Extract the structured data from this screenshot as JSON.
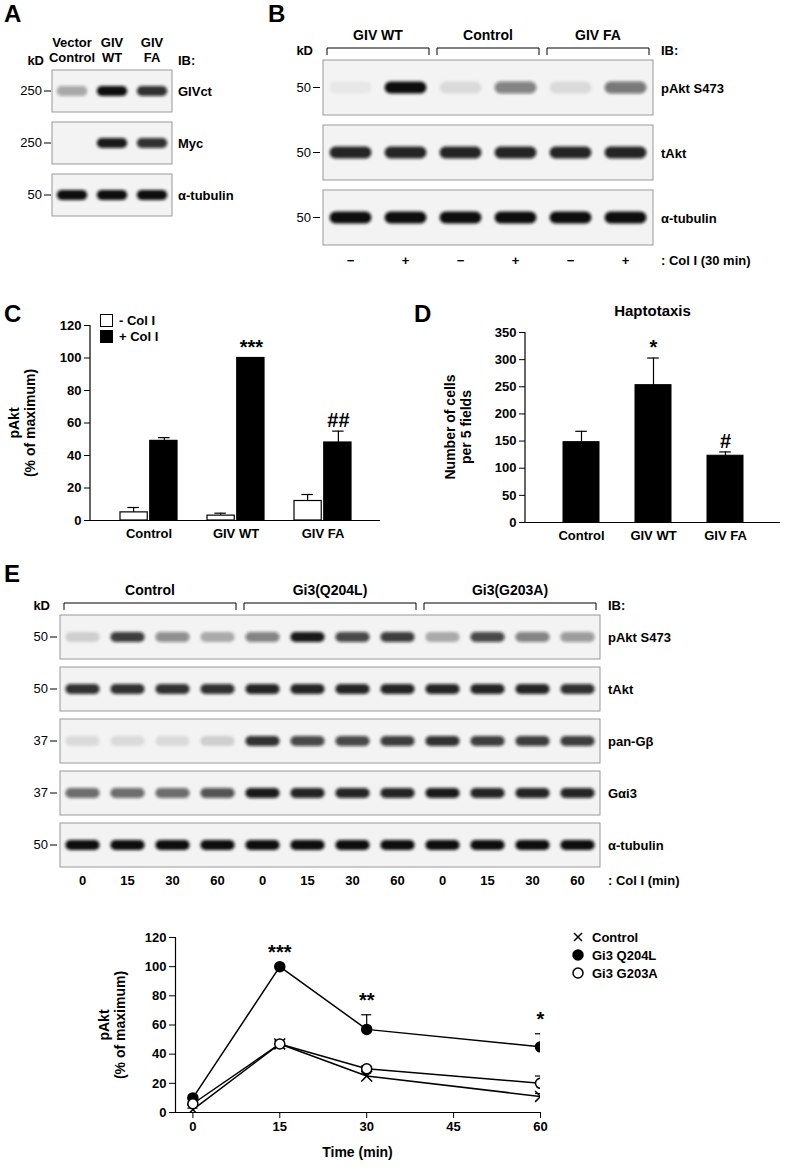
{
  "panel_labels": [
    "A",
    "B",
    "C",
    "D",
    "E"
  ],
  "blots": [
    {
      "lane_labels": [
        "Vector\nControl",
        "GIV\nWT",
        "GIV\nFA"
      ],
      "kd_header": "kD",
      "ib_header": "IB:",
      "rows": [
        {
          "label": "GIVct",
          "kd": 250,
          "intensity": [
            0.35,
            1,
            0.85
          ]
        },
        {
          "label": "Myc",
          "kd": 250,
          "intensity": [
            0,
            0.95,
            0.85
          ]
        },
        {
          "label": "α-tubulin",
          "kd": 50,
          "intensity": [
            1,
            1,
            1
          ]
        }
      ]
    },
    {
      "groups": [
        "GIV WT",
        "Control",
        "GIV FA"
      ],
      "lane_labels_bottom": [
        "−",
        "+",
        "−",
        "+",
        "−",
        "+"
      ],
      "bottom_caption": ": Col I (30 min)",
      "kd_header": "kD",
      "ib_header": "IB:",
      "rows": [
        {
          "label": "pAkt S473",
          "kd": 50,
          "intensity": [
            0.05,
            1,
            0.1,
            0.5,
            0.1,
            0.55
          ]
        },
        {
          "label": "tAkt",
          "kd": 50,
          "intensity": [
            0.9,
            0.9,
            0.9,
            0.9,
            0.9,
            0.9
          ]
        },
        {
          "label": "α-tubulin",
          "kd": 50,
          "intensity": [
            1,
            1,
            1,
            1,
            1,
            1
          ]
        }
      ]
    },
    {
      "groups": [
        "Control",
        "Gi3(Q204L)",
        "Gi3(G203A)"
      ],
      "lane_labels_bottom": [
        0,
        15,
        30,
        60,
        0,
        15,
        30,
        60,
        0,
        15,
        30,
        60
      ],
      "bottom_caption": ": Col I (min)",
      "kd_header": "kD",
      "ib_header": "IB:",
      "rows": [
        {
          "label": "pAkt S473",
          "kd": 50,
          "intensity": [
            0.15,
            0.8,
            0.45,
            0.3,
            0.5,
            0.95,
            0.75,
            0.8,
            0.3,
            0.75,
            0.5,
            0.4
          ]
        },
        {
          "label": "tAkt",
          "kd": 50,
          "intensity": [
            0.85,
            0.85,
            0.85,
            0.85,
            0.9,
            0.9,
            0.9,
            0.9,
            0.9,
            0.9,
            0.9,
            0.85
          ]
        },
        {
          "label": "pan-Gβ",
          "kd": 37,
          "intensity": [
            0.1,
            0.1,
            0.1,
            0.15,
            0.85,
            0.75,
            0.75,
            0.8,
            0.85,
            0.8,
            0.8,
            0.8
          ]
        },
        {
          "label": "Gαi3",
          "kd": 37,
          "intensity": [
            0.6,
            0.6,
            0.6,
            0.7,
            0.95,
            0.9,
            0.9,
            0.9,
            0.95,
            0.9,
            0.9,
            0.9
          ]
        },
        {
          "label": "α-tubulin",
          "kd": 50,
          "intensity": [
            1,
            1,
            1,
            1,
            1,
            1,
            1,
            1,
            1,
            1,
            1,
            1
          ]
        }
      ]
    }
  ],
  "chart_data": [
    {
      "type": "bar",
      "categories": [
        "Control",
        "GIV WT",
        "GIV FA"
      ],
      "y_label": "pAkt\n(% of maximum)",
      "series": [
        {
          "name": "- Col I",
          "color": "#ffffff",
          "values": [
            5,
            3,
            12
          ],
          "errors": [
            3,
            1.5,
            4
          ]
        },
        {
          "name": "+ Col I",
          "color": "#000000",
          "values": [
            49,
            100,
            48
          ],
          "errors": [
            2,
            0,
            7
          ]
        }
      ],
      "ylim": [
        0,
        120
      ],
      "yticks": [
        0,
        20,
        40,
        60,
        80,
        100,
        120
      ],
      "legend": "top-left",
      "annotations": [
        {
          "category": "GIV WT",
          "series": "+ Col I",
          "text": "***"
        },
        {
          "category": "GIV FA",
          "series": "+ Col I",
          "text": "##"
        }
      ]
    },
    {
      "type": "bar",
      "title": "Haptotaxis",
      "categories": [
        "Control",
        "GIV WT",
        "GIV FA"
      ],
      "values": [
        148,
        253,
        123
      ],
      "errors": [
        20,
        50,
        7
      ],
      "color": "#000000",
      "y_label": "Number of cells\nper 5 fields",
      "ylim": [
        0,
        350
      ],
      "yticks": [
        0,
        50,
        100,
        150,
        200,
        250,
        300,
        350
      ],
      "annotations": [
        {
          "category": "GIV WT",
          "text": "*"
        },
        {
          "category": "GIV FA",
          "text": "#"
        }
      ]
    },
    {
      "type": "line",
      "x": [
        0,
        15,
        30,
        60
      ],
      "xlim": [
        -3,
        60
      ],
      "xticks": [
        0,
        15,
        30,
        45,
        60
      ],
      "x_label": "Time (min)",
      "y_label": "pAkt\n(% of maximum)",
      "ylim": [
        0,
        120
      ],
      "yticks": [
        0,
        20,
        40,
        60,
        80,
        100,
        120
      ],
      "legend": "top-right",
      "series": [
        {
          "name": "Control",
          "color": "#000000",
          "marker": "x",
          "values": [
            2,
            47,
            25,
            11
          ],
          "errors": [
            1,
            2,
            2,
            2
          ]
        },
        {
          "name": "Gi3 Q204L",
          "color": "#000000",
          "marker": "circle",
          "values": [
            10,
            100,
            57,
            45
          ],
          "errors": [
            0,
            0,
            10,
            9
          ]
        },
        {
          "name": "Gi3 G203A",
          "color": "#000000",
          "marker": "circle-open",
          "values": [
            6,
            47,
            30,
            20
          ],
          "errors": [
            0,
            0,
            2,
            5
          ]
        }
      ],
      "annotations": [
        {
          "x": 15,
          "series": "Gi3 Q204L",
          "text": "***"
        },
        {
          "x": 30,
          "series": "Gi3 Q204L",
          "text": "**"
        },
        {
          "x": 60,
          "series": "Gi3 Q204L",
          "text": "*"
        }
      ]
    }
  ]
}
